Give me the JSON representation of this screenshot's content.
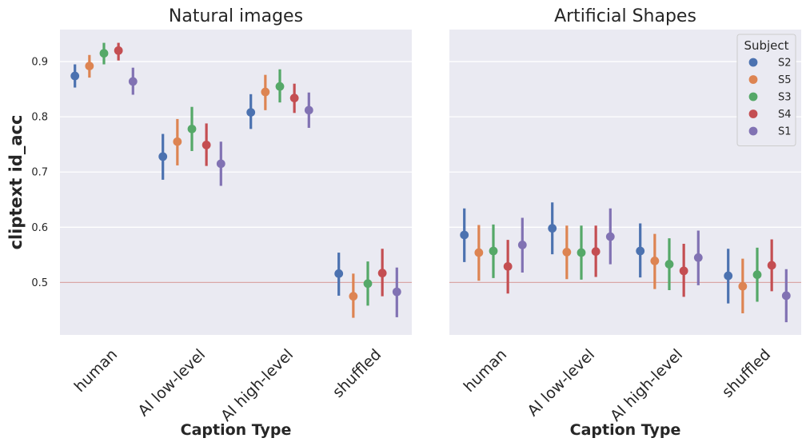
{
  "chart_data": {
    "type": "point",
    "ylabel": "cliptext id_acc",
    "ylim": [
      0.405,
      0.958
    ],
    "yticks": [
      0.5,
      0.6,
      0.7,
      0.8,
      0.9
    ],
    "ytick_labels": [
      "0.5",
      "0.6",
      "0.7",
      "0.8",
      "0.9"
    ],
    "chance_level": 0.5,
    "grid": true,
    "legend": {
      "title": "Subject",
      "placement": "top-right",
      "entries": [
        "S2",
        "S5",
        "S3",
        "S4",
        "S1"
      ]
    },
    "series_colors": {
      "S2": "#4c72b0",
      "S5": "#dd8452",
      "S3": "#55a868",
      "S4": "#c44e52",
      "S1": "#8172b3"
    },
    "chance_color": "#d9a6a6",
    "panels": [
      {
        "title": "Natural images",
        "xlabel": "Caption Type",
        "categories": [
          "human",
          "AI low-level",
          "AI high-level",
          "shuffled"
        ],
        "series": [
          {
            "name": "S2",
            "values": [
              0.874,
              0.728,
              0.808,
              0.516
            ],
            "ci_low": [
              0.853,
              0.686,
              0.778,
              0.476
            ],
            "ci_high": [
              0.895,
              0.769,
              0.841,
              0.554
            ]
          },
          {
            "name": "S5",
            "values": [
              0.892,
              0.755,
              0.845,
              0.475
            ],
            "ci_low": [
              0.871,
              0.712,
              0.812,
              0.436
            ],
            "ci_high": [
              0.912,
              0.796,
              0.876,
              0.516
            ]
          },
          {
            "name": "S3",
            "values": [
              0.915,
              0.778,
              0.855,
              0.498
            ],
            "ci_low": [
              0.895,
              0.738,
              0.826,
              0.458
            ],
            "ci_high": [
              0.934,
              0.818,
              0.886,
              0.538
            ]
          },
          {
            "name": "S4",
            "values": [
              0.92,
              0.749,
              0.834,
              0.517
            ],
            "ci_low": [
              0.902,
              0.711,
              0.807,
              0.475
            ],
            "ci_high": [
              0.934,
              0.788,
              0.86,
              0.561
            ]
          },
          {
            "name": "S1",
            "values": [
              0.864,
              0.715,
              0.812,
              0.483
            ],
            "ci_low": [
              0.84,
              0.675,
              0.78,
              0.437
            ],
            "ci_high": [
              0.889,
              0.755,
              0.844,
              0.527
            ]
          }
        ]
      },
      {
        "title": "Artificial Shapes",
        "xlabel": "Caption Type",
        "categories": [
          "human",
          "AI low-level",
          "AI high-level",
          "shuffled"
        ],
        "series": [
          {
            "name": "S2",
            "values": [
              0.586,
              0.598,
              0.557,
              0.512
            ],
            "ci_low": [
              0.537,
              0.551,
              0.509,
              0.462
            ],
            "ci_high": [
              0.634,
              0.645,
              0.607,
              0.561
            ]
          },
          {
            "name": "S5",
            "values": [
              0.554,
              0.555,
              0.539,
              0.493
            ],
            "ci_low": [
              0.503,
              0.506,
              0.488,
              0.444
            ],
            "ci_high": [
              0.604,
              0.603,
              0.588,
              0.543
            ]
          },
          {
            "name": "S3",
            "values": [
              0.557,
              0.554,
              0.533,
              0.514
            ],
            "ci_low": [
              0.508,
              0.505,
              0.486,
              0.465
            ],
            "ci_high": [
              0.605,
              0.603,
              0.58,
              0.563
            ]
          },
          {
            "name": "S4",
            "values": [
              0.529,
              0.556,
              0.521,
              0.531
            ],
            "ci_low": [
              0.48,
              0.51,
              0.474,
              0.484
            ],
            "ci_high": [
              0.577,
              0.603,
              0.57,
              0.578
            ]
          },
          {
            "name": "S1",
            "values": [
              0.568,
              0.583,
              0.545,
              0.476
            ],
            "ci_low": [
              0.518,
              0.533,
              0.495,
              0.428
            ],
            "ci_high": [
              0.617,
              0.634,
              0.594,
              0.524
            ]
          }
        ]
      }
    ]
  }
}
